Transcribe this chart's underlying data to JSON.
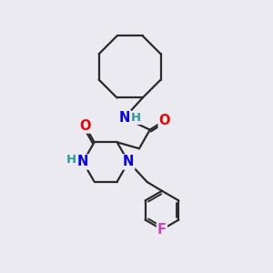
{
  "bg_color": "#eaeaf0",
  "bond_color": "#2a2a2a",
  "bond_width": 1.6,
  "atom_colors": {
    "N": "#0000ee",
    "O": "#ee0000",
    "F": "#cc44bb",
    "H": "#2a9a9a",
    "C": "#2a2a2a"
  },
  "font_size_atom": 10.5
}
